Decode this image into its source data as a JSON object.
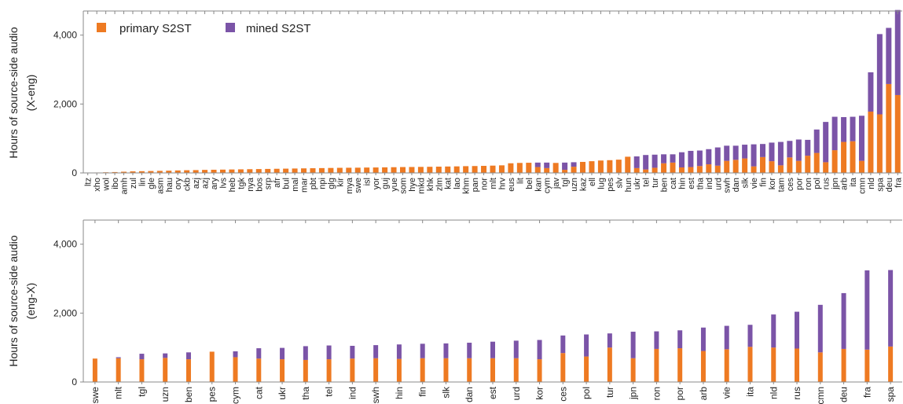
{
  "colors": {
    "primary": "#ee7a22",
    "mined": "#7b54a7"
  },
  "legend": {
    "primary_label": "primary S2ST",
    "mined_label": "mined S2ST",
    "placement": "top-left"
  },
  "chart_data": [
    {
      "type": "bar",
      "stacked": true,
      "direction_label": "(X-eng)",
      "ylabel": "Hours of source-side audio",
      "ylim": [
        0,
        4700
      ],
      "yticks": [
        "0",
        "2,000",
        "4,000"
      ],
      "categories": [
        "ltz",
        "xho",
        "wol",
        "ibo",
        "amh",
        "zul",
        "lin",
        "gle",
        "asm",
        "hau",
        "ory",
        "ckb",
        "azj",
        "azj",
        "ary",
        "lvs",
        "heb",
        "tgk",
        "nya",
        "bos",
        "srp",
        "afr",
        "bul",
        "mal",
        "mar",
        "pbt",
        "npi",
        "glg",
        "kir",
        "mya",
        "swe",
        "isl",
        "yor",
        "guj",
        "yue",
        "som",
        "hye",
        "mkd",
        "khk",
        "zlm",
        "kat",
        "lao",
        "khm",
        "pan",
        "nor",
        "mlt",
        "hrv",
        "eus",
        "lit",
        "bel",
        "kan",
        "cym",
        "jav",
        "tgl",
        "uzn",
        "kaz",
        "ell",
        "lug",
        "pes",
        "slv",
        "hun",
        "ukr",
        "tel",
        "tur",
        "ben",
        "cat",
        "hin",
        "est",
        "tha",
        "ind",
        "urd",
        "swh",
        "dan",
        "slk",
        "vie",
        "fin",
        "kor",
        "tam",
        "ces",
        "por",
        "ron",
        "pol",
        "rus",
        "jpn",
        "arb",
        "ita",
        "cmn",
        "nld",
        "spa",
        "deu",
        "fra"
      ],
      "series": [
        {
          "name": "primary S2ST",
          "values": [
            8,
            12,
            18,
            25,
            35,
            45,
            50,
            55,
            60,
            65,
            72,
            78,
            82,
            88,
            92,
            96,
            100,
            104,
            108,
            112,
            116,
            120,
            124,
            128,
            132,
            136,
            140,
            144,
            148,
            150,
            152,
            156,
            158,
            162,
            166,
            170,
            172,
            175,
            178,
            182,
            186,
            190,
            196,
            200,
            205,
            212,
            220,
            280,
            290,
            295,
            170,
            140,
            290,
            90,
            180,
            320,
            340,
            360,
            370,
            385,
            470,
            140,
            100,
            150,
            280,
            300,
            160,
            170,
            200,
            250,
            210,
            350,
            380,
            420,
            190,
            460,
            340,
            220,
            450,
            350,
            500,
            580,
            310,
            660,
            900,
            920,
            350,
            1780,
            1700,
            2580,
            2260
          ]
        },
        {
          "name": "mined S2ST",
          "values": [
            0,
            0,
            0,
            0,
            0,
            0,
            0,
            0,
            0,
            0,
            0,
            0,
            0,
            0,
            0,
            0,
            0,
            0,
            0,
            0,
            0,
            0,
            0,
            0,
            0,
            0,
            0,
            0,
            0,
            0,
            0,
            0,
            0,
            0,
            0,
            0,
            0,
            0,
            0,
            0,
            0,
            0,
            0,
            0,
            0,
            0,
            0,
            0,
            0,
            0,
            130,
            160,
            0,
            210,
            130,
            0,
            0,
            0,
            0,
            0,
            0,
            340,
            420,
            380,
            260,
            240,
            440,
            470,
            450,
            440,
            530,
            440,
            410,
            400,
            640,
            380,
            540,
            680,
            480,
            620,
            460,
            680,
            1170,
            970,
            720,
            710,
            1310,
            1140,
            2330,
            1630,
            2470
          ]
        }
      ]
    },
    {
      "type": "bar",
      "stacked": true,
      "direction_label": "(eng-X)",
      "ylabel": "Hours of source-side audio",
      "ylim": [
        0,
        4700
      ],
      "yticks": [
        "0",
        "2,000",
        "4,000"
      ],
      "categories": [
        "swe",
        "mlt",
        "tgl",
        "uzn",
        "ben",
        "pes",
        "cym",
        "cat",
        "ukr",
        "tha",
        "tel",
        "ind",
        "swh",
        "hin",
        "fin",
        "slk",
        "dan",
        "est",
        "urd",
        "kor",
        "ces",
        "pol",
        "tur",
        "jpn",
        "ron",
        "por",
        "arb",
        "vie",
        "ita",
        "nld",
        "rus",
        "cmn",
        "deu",
        "fra",
        "spa"
      ],
      "series": [
        {
          "name": "primary S2ST",
          "values": [
            680,
            690,
            660,
            700,
            660,
            880,
            720,
            680,
            660,
            640,
            660,
            680,
            690,
            670,
            690,
            690,
            690,
            690,
            690,
            660,
            840,
            740,
            1000,
            690,
            960,
            980,
            900,
            950,
            1020,
            1000,
            970,
            860,
            960,
            940,
            1030
          ]
        },
        {
          "name": "mined S2ST",
          "values": [
            0,
            30,
            160,
            130,
            200,
            0,
            170,
            300,
            330,
            400,
            400,
            370,
            380,
            420,
            420,
            430,
            450,
            480,
            510,
            560,
            510,
            640,
            410,
            770,
            510,
            520,
            680,
            680,
            640,
            960,
            1070,
            1380,
            1620,
            2300,
            2220
          ]
        }
      ]
    }
  ]
}
